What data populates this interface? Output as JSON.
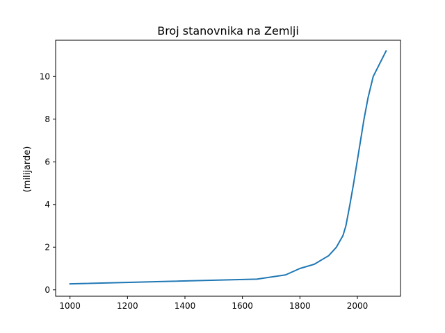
{
  "chart_data": {
    "type": "line",
    "title": "Broj stanovnika na Zemlji",
    "xlabel": "",
    "ylabel": "(milijarde)",
    "xlim": [
      950,
      2150
    ],
    "ylim": [
      -0.3,
      11.7
    ],
    "xticks": [
      1000,
      1200,
      1400,
      1600,
      1800,
      2000
    ],
    "yticks": [
      0,
      2,
      4,
      6,
      8,
      10
    ],
    "grid": false,
    "color": "#1f77b4",
    "series": [
      {
        "x": [
          1000,
          1650,
          1750,
          1800,
          1850,
          1900,
          1927,
          1950,
          1960,
          1974,
          1987,
          1999,
          2011,
          2023,
          2037,
          2055,
          2100
        ],
        "values": [
          0.28,
          0.5,
          0.7,
          1.0,
          1.2,
          1.6,
          2.0,
          2.55,
          3.0,
          4.0,
          5.0,
          6.0,
          7.0,
          8.0,
          9.0,
          10.0,
          11.2
        ]
      }
    ]
  }
}
